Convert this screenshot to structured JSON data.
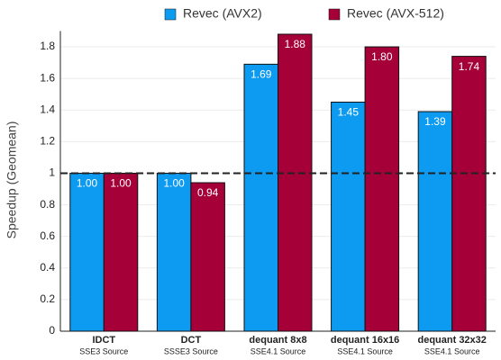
{
  "chart_data": {
    "type": "bar",
    "ylabel": "Speedup (Geomean)",
    "categories": [
      "IDCT",
      "DCT",
      "dequant 8x8",
      "dequant 16x16",
      "dequant 32x32"
    ],
    "category_sublabels": [
      "SSE3 Source",
      "SSSE3 Source",
      "SSE4.1 Source",
      "SSE4.1 Source",
      "SSE4.1 Source"
    ],
    "series": [
      {
        "name": "Revec (AVX2)",
        "color": "#0d9bf2",
        "values": [
          1.0,
          1.0,
          1.69,
          1.45,
          1.39
        ],
        "value_labels": [
          "1.00",
          "1.00",
          "1.69",
          "1.45",
          "1.39"
        ]
      },
      {
        "name": "Revec (AVX-512)",
        "color": "#a60039",
        "values": [
          1.0,
          0.94,
          1.88,
          1.8,
          1.74
        ],
        "value_labels": [
          "1.00",
          "0.94",
          "1.88",
          "1.80",
          "1.74"
        ]
      }
    ],
    "ylim": [
      0,
      1.9
    ],
    "yticks": [
      0,
      0.2,
      0.4,
      0.6,
      0.8,
      1,
      1.2,
      1.4,
      1.6,
      1.8
    ],
    "reference_line": 1,
    "grid": true,
    "legend": "top"
  }
}
